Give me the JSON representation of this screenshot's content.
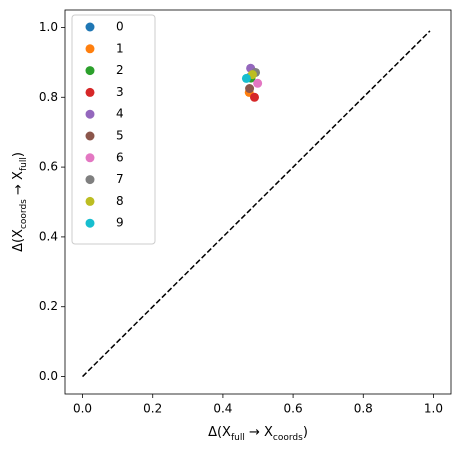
{
  "chart_data": {
    "type": "scatter",
    "xlabel": [
      {
        "text": "Δ(X"
      },
      {
        "text": "full",
        "sub": true
      },
      {
        "text": " → X"
      },
      {
        "text": "coords",
        "sub": true
      },
      {
        "text": ")"
      }
    ],
    "ylabel": [
      {
        "text": "Δ(X"
      },
      {
        "text": "coords",
        "sub": true
      },
      {
        "text": " → X"
      },
      {
        "text": "full",
        "sub": true
      },
      {
        "text": ")"
      }
    ],
    "xlim": [
      -0.05,
      1.05
    ],
    "ylim": [
      -0.05,
      1.05
    ],
    "xticks": [
      {
        "value": 0,
        "label": "0.0"
      },
      0.2,
      0.4,
      0.6,
      0.8,
      {
        "value": 1,
        "label": "1.0"
      }
    ],
    "yticks": [
      {
        "value": 0,
        "label": "0.0"
      },
      0.2,
      0.4,
      0.6,
      0.8,
      {
        "value": 1,
        "label": "1.0"
      }
    ],
    "legend": "upper left",
    "diagonal": {
      "x": [
        0,
        0.99
      ],
      "y": [
        0,
        0.99
      ],
      "color": "#000000",
      "dashed": true
    },
    "series": [
      {
        "name": "0",
        "color": "#1f77b4",
        "x": [
          0.48
        ],
        "y": [
          0.86
        ]
      },
      {
        "name": "1",
        "color": "#ff7f0e",
        "x": [
          0.475
        ],
        "y": [
          0.814
        ]
      },
      {
        "name": "2",
        "color": "#2ca02c",
        "x": [
          0.48
        ],
        "y": [
          0.855
        ]
      },
      {
        "name": "3",
        "color": "#d62728",
        "x": [
          0.49
        ],
        "y": [
          0.8
        ]
      },
      {
        "name": "4",
        "color": "#9467bd",
        "x": [
          0.479
        ],
        "y": [
          0.883
        ]
      },
      {
        "name": "5",
        "color": "#8c564b",
        "x": [
          0.476
        ],
        "y": [
          0.825
        ]
      },
      {
        "name": "6",
        "color": "#e377c2",
        "x": [
          0.499
        ],
        "y": [
          0.84
        ]
      },
      {
        "name": "7",
        "color": "#7f7f7f",
        "x": [
          0.493
        ],
        "y": [
          0.871
        ]
      },
      {
        "name": "8",
        "color": "#bcbd22",
        "x": [
          0.484
        ],
        "y": [
          0.865
        ]
      },
      {
        "name": "9",
        "color": "#17becf",
        "x": [
          0.467
        ],
        "y": [
          0.854
        ]
      }
    ]
  }
}
